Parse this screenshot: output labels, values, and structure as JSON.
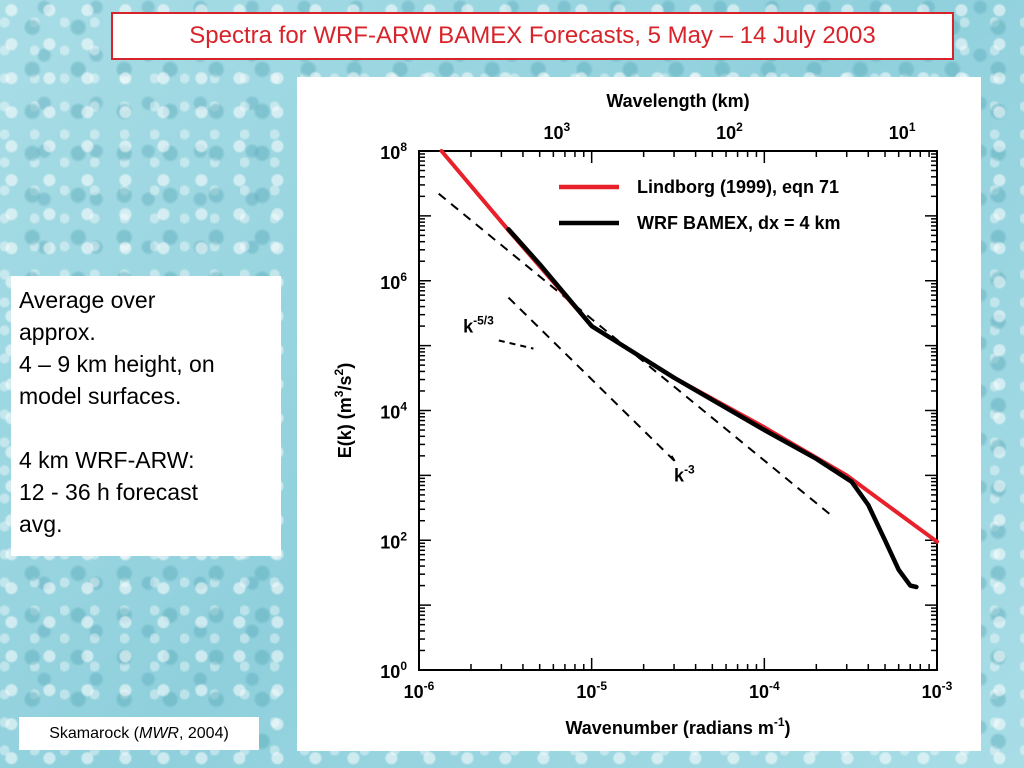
{
  "slide": {
    "title": "Spectra for WRF-ARW BAMEX Forecasts,  5 May – 14 July 2003",
    "note_lines": [
      "Average over",
      "approx.",
      "4 – 9 km height, on",
      "model surfaces.",
      "",
      "4 km WRF-ARW:",
      "12 - 36 h forecast",
      "avg."
    ],
    "credit_prefix": "Skamarock (",
    "credit_journal": "MWR",
    "credit_suffix": ", 2004)"
  },
  "chart_data": {
    "type": "line",
    "title": "",
    "xlabel": "Wavenumber  (radians m-1)",
    "xlabel_main": "Wavenumber  (radians m",
    "xlabel_sup": "-1",
    "xlabel_end": ")",
    "ylabel": "E(k)  (m3/s2)",
    "ylabel_parts": {
      "a": "E(k)  (m",
      "sup1": "3",
      "b": "/s",
      "sup2": "2",
      "c": ")"
    },
    "top_xlabel": "Wavelength  (km)",
    "x_scale": "log",
    "y_scale": "log",
    "xlim": [
      1e-06,
      0.001
    ],
    "ylim": [
      1,
      100000000.0
    ],
    "x_ticks": [
      {
        "value": 1e-06,
        "base": "10",
        "exp": "-6"
      },
      {
        "value": 1e-05,
        "base": "10",
        "exp": "-5"
      },
      {
        "value": 0.0001,
        "base": "10",
        "exp": "-4"
      },
      {
        "value": 0.001,
        "base": "10",
        "exp": "-3"
      }
    ],
    "y_ticks": [
      {
        "value": 1,
        "base": "10",
        "exp": "0"
      },
      {
        "value": 100,
        "base": "10",
        "exp": "2"
      },
      {
        "value": 10000,
        "base": "10",
        "exp": "4"
      },
      {
        "value": 1000000,
        "base": "10",
        "exp": "6"
      },
      {
        "value": 100000000,
        "base": "10",
        "exp": "8"
      }
    ],
    "top_ticks": [
      {
        "wavelength_km": 1000,
        "base": "10",
        "exp": "3"
      },
      {
        "wavelength_km": 100,
        "base": "10",
        "exp": "2"
      },
      {
        "wavelength_km": 10,
        "base": "10",
        "exp": "1"
      }
    ],
    "legend_position": "top-right",
    "series": [
      {
        "name": "Lindborg (1999),  eqn 71",
        "color": "#e8202a",
        "style": "solid",
        "points": [
          [
            1.35e-06,
            100000000.0
          ],
          [
            3.3e-06,
            6000000.0
          ],
          [
            1e-05,
            200000.0
          ],
          [
            3e-05,
            32000.0
          ],
          [
            0.0001,
            5500.0
          ],
          [
            0.0003,
            1000.0
          ],
          [
            0.001,
            95.0
          ]
        ]
      },
      {
        "name": "WRF BAMEX, dx = 4 km",
        "color": "#000000",
        "style": "solid",
        "points": [
          [
            3.3e-06,
            6200000.0
          ],
          [
            5e-06,
            1800000.0
          ],
          [
            1e-05,
            200000.0
          ],
          [
            3e-05,
            32000.0
          ],
          [
            0.0001,
            5000.0
          ],
          [
            0.0002,
            1800.0
          ],
          [
            0.00032,
            800.0
          ],
          [
            0.0004,
            350.0
          ],
          [
            0.0005,
            100.0
          ],
          [
            0.0006,
            35.0
          ],
          [
            0.0007,
            20.0
          ],
          [
            0.00076,
            19.0
          ]
        ]
      }
    ],
    "reference_lines": [
      {
        "label_base": "k",
        "label_exp": "-5/3",
        "points": [
          [
            1.3e-06,
            22000000.0
          ],
          [
            0.00025,
            230.0
          ]
        ]
      },
      {
        "label_base": "k",
        "label_exp": "-3",
        "points": [
          [
            3.3e-06,
            550000.0
          ],
          [
            3e-05,
            1700.0
          ]
        ]
      }
    ],
    "annotation_labels": [
      {
        "text_base": "k",
        "text_exp": "-5/3",
        "x": 1.8e-06,
        "y": 160000.0
      },
      {
        "text_base": "k",
        "text_exp": "-3",
        "x": 3e-05,
        "y": 800.0
      }
    ]
  }
}
